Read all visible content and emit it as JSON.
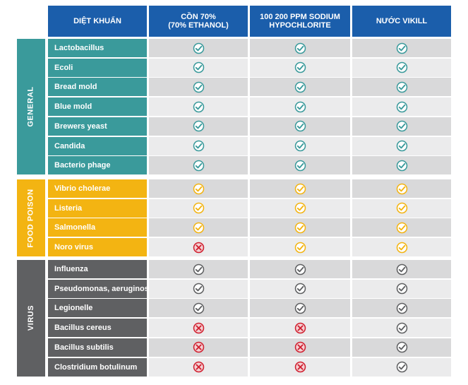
{
  "header": {
    "col0": "DIỆT KHUẨN",
    "col1": "CỒN 70%\n(70% ETHANOL)",
    "col2": "100 200 PPM SODIUM\nHYPOCHLORITE",
    "col3": "NƯỚC VIKILL"
  },
  "colors": {
    "general": "#3a9a9b",
    "food": "#f3b412",
    "virus": "#5f6062",
    "header": "#1b5eab",
    "check_general": "#3a9a9b",
    "check_food": "#f3b412",
    "check_virus": "#5f6062",
    "cross": "#d02030"
  },
  "groups": [
    {
      "label": "GENERAL",
      "key": "general",
      "rows": [
        {
          "name": "Lactobacillus",
          "marks": [
            "check",
            "check",
            "check"
          ]
        },
        {
          "name": "Ecoli",
          "marks": [
            "check",
            "check",
            "check"
          ]
        },
        {
          "name": "Bread mold",
          "marks": [
            "check",
            "check",
            "check"
          ]
        },
        {
          "name": "Blue mold",
          "marks": [
            "check",
            "check",
            "check"
          ]
        },
        {
          "name": "Brewers yeast",
          "marks": [
            "check",
            "check",
            "check"
          ]
        },
        {
          "name": "Candida",
          "marks": [
            "check",
            "check",
            "check"
          ]
        },
        {
          "name": "Bacterio phage",
          "marks": [
            "check",
            "check",
            "check"
          ]
        }
      ]
    },
    {
      "label": "FOOD POISON",
      "key": "food",
      "rows": [
        {
          "name": "Vibrio cholerae",
          "marks": [
            "check",
            "check",
            "check"
          ]
        },
        {
          "name": "Listeria",
          "marks": [
            "check",
            "check",
            "check"
          ]
        },
        {
          "name": "Salmonella",
          "marks": [
            "check",
            "check",
            "check"
          ]
        },
        {
          "name": "Noro virus",
          "marks": [
            "cross",
            "check",
            "check"
          ]
        }
      ]
    },
    {
      "label": "VIRUS",
      "key": "virus",
      "rows": [
        {
          "name": "Influenza",
          "marks": [
            "check",
            "check",
            "check"
          ]
        },
        {
          "name": "Pseudomonas, aeruginosa",
          "marks": [
            "check",
            "check",
            "check"
          ]
        },
        {
          "name": "Legionelle",
          "marks": [
            "check",
            "check",
            "check"
          ]
        },
        {
          "name": "Bacillus cereus",
          "marks": [
            "cross",
            "cross",
            "check"
          ]
        },
        {
          "name": "Bacillus subtilis",
          "marks": [
            "cross",
            "cross",
            "check"
          ]
        },
        {
          "name": "Clostridium botulinum",
          "marks": [
            "cross",
            "cross",
            "check"
          ]
        }
      ]
    }
  ]
}
